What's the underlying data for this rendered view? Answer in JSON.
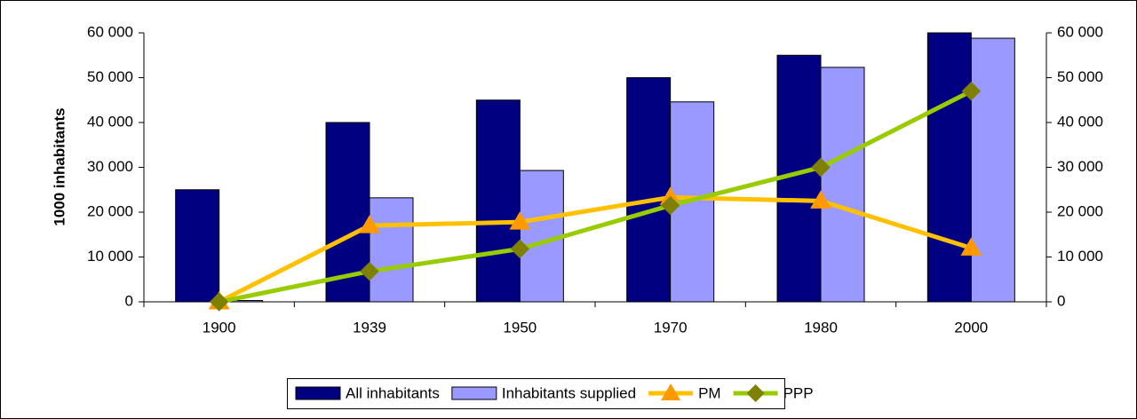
{
  "chart_data": {
    "type": "combo",
    "categories": [
      "1900",
      "1939",
      "1950",
      "1970",
      "1980",
      "2000"
    ],
    "y_label": "1000 inhabitants",
    "series": [
      {
        "name": "All inhabitants",
        "type": "bar",
        "color": "#000080",
        "values": [
          25000,
          40000,
          45000,
          50000,
          55000,
          60000
        ]
      },
      {
        "name": "Inhabitants supplied",
        "type": "bar",
        "color": "#9999ff",
        "values": [
          300,
          23200,
          29300,
          44600,
          52300,
          58800
        ]
      },
      {
        "name": "PM",
        "type": "line",
        "axis": "y2",
        "color": "#ffc000",
        "marker": "triangle",
        "marker_color": "#ff9900",
        "values": [
          0,
          17000,
          17800,
          23300,
          22500,
          12000
        ]
      },
      {
        "name": "PPP",
        "type": "line",
        "axis": "y2",
        "color": "#99cc00",
        "marker": "diamond",
        "marker_color": "#808000",
        "values": [
          0,
          6800,
          11800,
          21500,
          30000,
          47000
        ]
      }
    ],
    "ylim": [
      0,
      60000
    ],
    "yticks": [
      0,
      {
        "value": 10000,
        "label": "10 000"
      },
      {
        "value": 20000,
        "label": "20 000"
      },
      {
        "value": 30000,
        "label": "30 000"
      },
      {
        "value": 40000,
        "label": "40 000"
      },
      {
        "value": 50000,
        "label": "50 000"
      },
      {
        "value": 60000,
        "label": "60 000"
      }
    ],
    "y2lim": [
      0,
      60000
    ],
    "y2ticks": [
      0,
      {
        "value": 10000,
        "label": "10 000"
      },
      {
        "value": 20000,
        "label": "20 000"
      },
      {
        "value": 30000,
        "label": "30 000"
      },
      {
        "value": 40000,
        "label": "40 000"
      },
      {
        "value": 50000,
        "label": "50 000"
      },
      {
        "value": 60000,
        "label": "60 000"
      }
    ],
    "grid": false,
    "legend": "bottom"
  }
}
